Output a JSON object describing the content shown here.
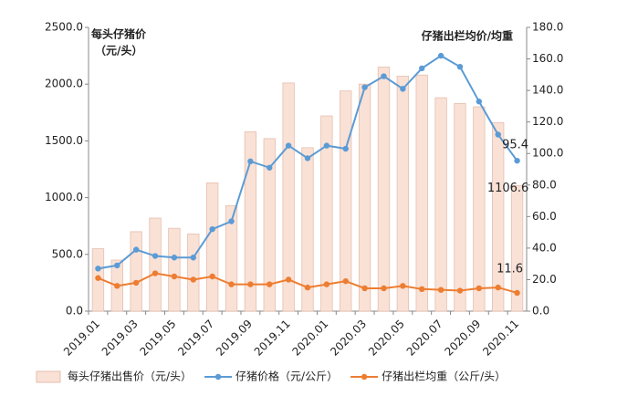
{
  "chart_data": {
    "type": "bar-line",
    "y_axis_title": [
      "每头仔猪价",
      "（元/头）"
    ],
    "y2_axis_title": "仔猪出栏均价/均重",
    "categories": [
      "2019.01",
      null,
      "2019.03",
      null,
      "2019.05",
      null,
      "2019.07",
      null,
      "2019.09",
      null,
      "2019.11",
      null,
      "2020.01",
      null,
      "2020.03",
      null,
      "2020.05",
      null,
      "2020.07",
      null,
      "2020.09",
      null,
      "2020.11"
    ],
    "series": [
      {
        "name": "每头仔猪出售价（元/头）",
        "type": "bar",
        "color": "#f9e1d6",
        "values": [
          550,
          450,
          700,
          820,
          730,
          680,
          1130,
          930,
          1580,
          1520,
          2010,
          1440,
          1720,
          1940,
          2000,
          2150,
          2070,
          2080,
          1880,
          1830,
          1800,
          1660,
          1106.6
        ]
      },
      {
        "name": "仔猪价格（元/公斤）",
        "type": "line",
        "axis": "y2",
        "color": "#5b9bd5",
        "values": [
          27,
          29,
          39,
          35,
          34,
          34,
          52,
          57,
          95,
          91,
          105,
          97,
          105,
          103,
          142,
          149,
          141,
          154,
          162,
          155,
          133,
          112,
          95.4
        ]
      },
      {
        "name": "仔猪出栏均重（公斤/头）",
        "type": "line",
        "axis": "y2",
        "color": "#ed7d31",
        "values": [
          21,
          16,
          18,
          24,
          22,
          20,
          22,
          17,
          17,
          17,
          20,
          15,
          17,
          19,
          14.5,
          14.5,
          16,
          14,
          13.5,
          13,
          14.5,
          15,
          11.6
        ]
      }
    ],
    "ylim": [
      0,
      2500
    ],
    "yticks": [
      {
        "value": 0,
        "label": "0.0"
      },
      {
        "value": 500,
        "label": "500.0"
      },
      {
        "value": 1000,
        "label": "1000.0"
      },
      {
        "value": 1500,
        "label": "1500.0"
      },
      {
        "value": 2000,
        "label": "2000.0"
      },
      {
        "value": 2500,
        "label": "2500.0"
      }
    ],
    "y2lim": [
      0,
      180
    ],
    "y2ticks": [
      {
        "value": 0,
        "label": "0.0"
      },
      {
        "value": 20,
        "label": "20.0"
      },
      {
        "value": 40,
        "label": "40.0"
      },
      {
        "value": 60,
        "label": "60.0"
      },
      {
        "value": 80,
        "label": "80.0"
      },
      {
        "value": 100,
        "label": "100.0"
      },
      {
        "value": 120,
        "label": "120.0"
      },
      {
        "value": 140,
        "label": "140.0"
      },
      {
        "value": 160,
        "label": "160.0"
      },
      {
        "value": 180,
        "label": "180.0"
      }
    ]
  }
}
